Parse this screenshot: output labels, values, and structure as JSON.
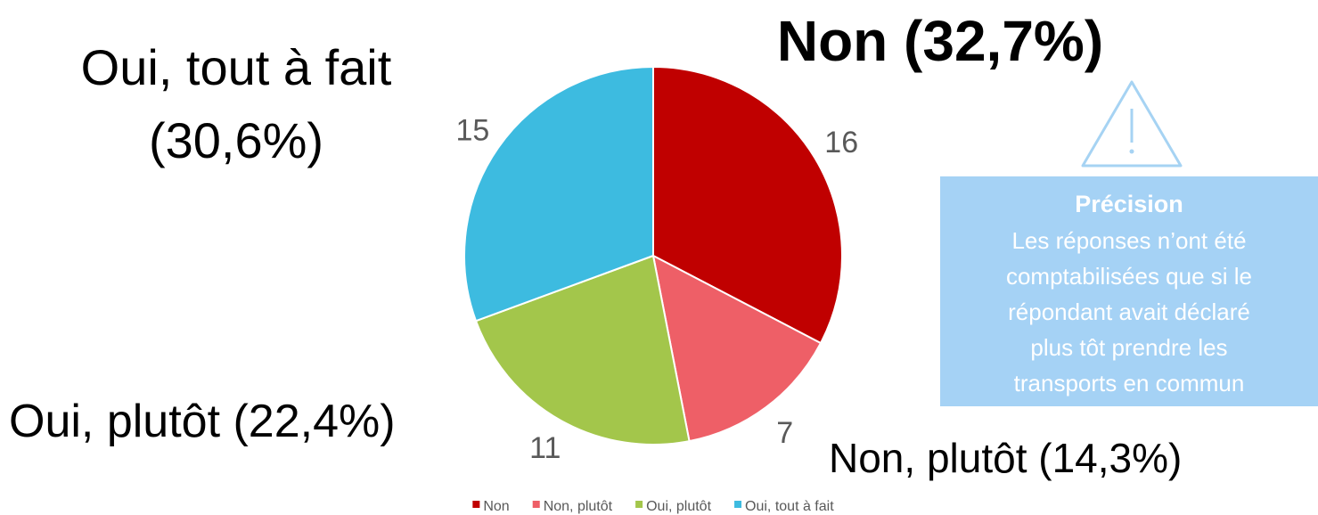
{
  "chart_data": {
    "type": "pie",
    "categories": [
      "Non",
      "Non, plutôt",
      "Oui, plutôt",
      "Oui, tout à fait"
    ],
    "values": [
      16,
      7,
      11,
      15
    ],
    "colors": [
      "#c00000",
      "#ee5f67",
      "#a3c64b",
      "#3dbbe0"
    ],
    "annotations": [
      {
        "lines": [
          "Non (32,7%)"
        ]
      },
      {
        "lines": [
          "Non, plutôt (14,3%)"
        ]
      },
      {
        "lines": [
          "Oui, plutôt (22,4%)"
        ]
      },
      {
        "lines": [
          "Oui, tout à fait",
          "(30,6%)"
        ]
      }
    ],
    "note": {
      "title": "Précision",
      "lines": [
        "Les réponses n’ont été",
        "comptabilisées que si le",
        "répondant avait déclaré",
        "plus tôt prendre les",
        "transports en commun"
      ]
    }
  }
}
